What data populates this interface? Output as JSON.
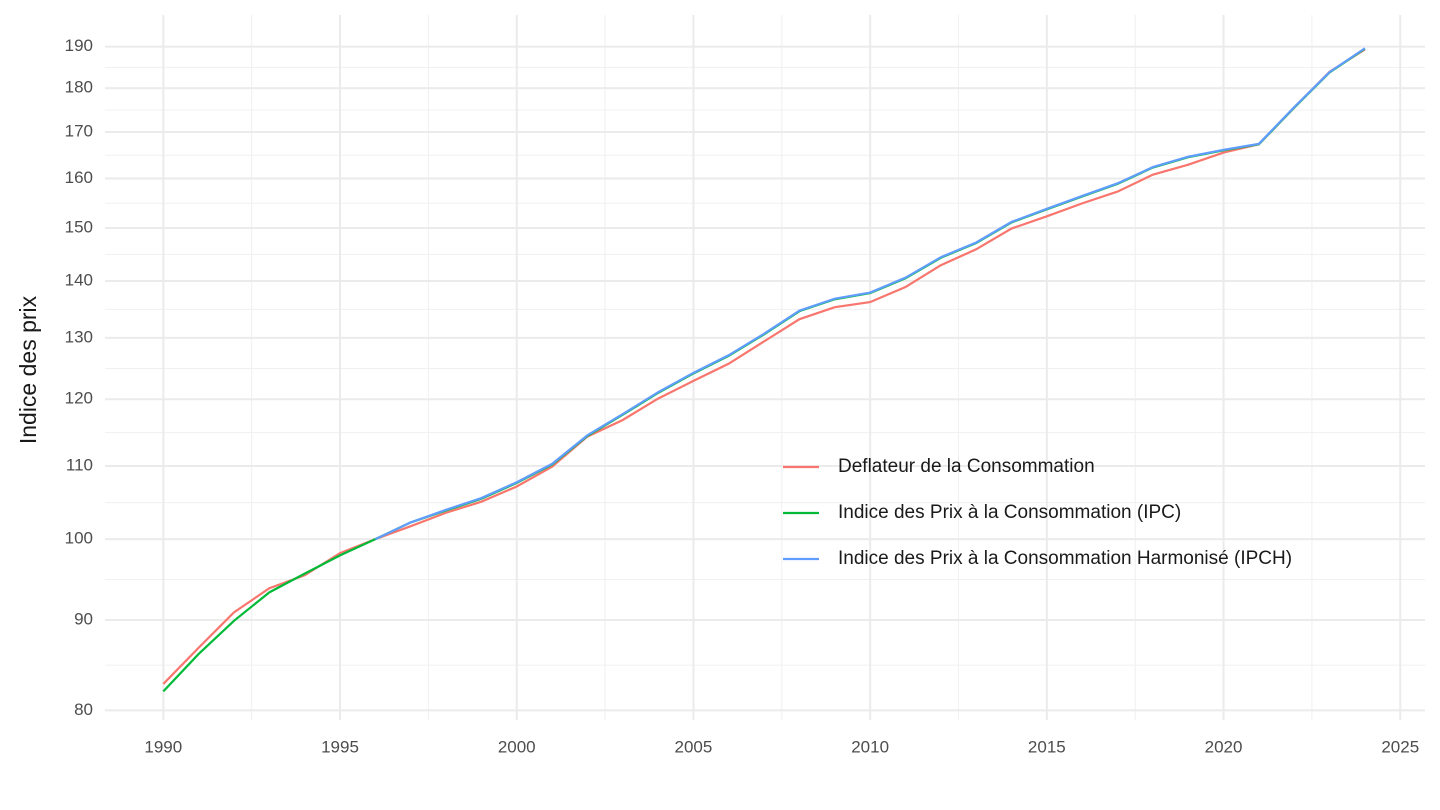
{
  "chart_data": {
    "type": "line",
    "ylabel": "Indice des prix",
    "x": [
      1990,
      1991,
      1992,
      1993,
      1994,
      1995,
      1996,
      1997,
      1998,
      1999,
      2000,
      2001,
      2002,
      2003,
      2004,
      2005,
      2006,
      2007,
      2008,
      2009,
      2010,
      2011,
      2012,
      2013,
      2014,
      2015,
      2016,
      2017,
      2018,
      2019,
      2020,
      2021,
      2022,
      2023,
      2024
    ],
    "series": [
      {
        "name": "Deflateur de la Consommation",
        "color": "#f8766d",
        "values": [
          82.8,
          86.8,
          90.9,
          93.8,
          95.4,
          98.2,
          100,
          101.7,
          103.5,
          105.0,
          107.1,
          109.9,
          114.3,
          116.8,
          120.1,
          122.9,
          125.7,
          129.4,
          133.2,
          135.3,
          136.2,
          138.9,
          142.9,
          145.9,
          149.9,
          152.3,
          154.9,
          157.3,
          160.8,
          162.9,
          165.5,
          167.3,
          175.5,
          183.9,
          189.3
        ]
      },
      {
        "name": "Indice des Prix à la Consommation (IPC)",
        "color": "#00ba38",
        "values": [
          82.0,
          86.1,
          89.9,
          93.3,
          95.6,
          97.9,
          100,
          102.2,
          103.8,
          105.4,
          107.6,
          110.2,
          114.4,
          117.6,
          121.0,
          124.1,
          127.0,
          130.6,
          134.6,
          136.7,
          137.8,
          140.5,
          144.3,
          147.1,
          151.1,
          153.7,
          156.3,
          158.9,
          162.3,
          164.5,
          166.0,
          167.3,
          175.5,
          183.7,
          189.5
        ]
      },
      {
        "name": "Indice des Prix à la Consommation Harmonisé (IPCH)",
        "color": "#619cff",
        "values": [
          null,
          null,
          null,
          null,
          null,
          null,
          100,
          102.2,
          103.9,
          105.5,
          107.7,
          110.3,
          114.5,
          117.7,
          121.1,
          124.2,
          127.1,
          130.7,
          134.7,
          136.8,
          137.9,
          140.6,
          144.4,
          147.2,
          151.2,
          153.8,
          156.4,
          159.0,
          162.4,
          164.6,
          166.1,
          167.4,
          175.6,
          183.8,
          189.6
        ]
      }
    ],
    "xlim": [
      1988.35,
      2025.7
    ],
    "xticks": [
      1990,
      1995,
      2000,
      2005,
      2010,
      2015,
      2020,
      2025
    ],
    "ylim": [
      79,
      198
    ],
    "yticks": [
      80,
      90,
      100,
      110,
      120,
      130,
      140,
      150,
      160,
      170,
      180,
      190
    ],
    "log_y": true,
    "grid": true,
    "minor_grid": true,
    "legend": "right"
  }
}
